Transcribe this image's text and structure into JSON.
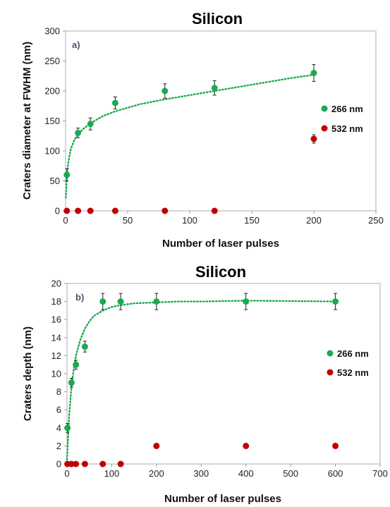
{
  "chart_data": [
    {
      "type": "scatter",
      "title": "Silicon",
      "panel_label": "a)",
      "xlabel": "Number of laser pulses",
      "ylabel": "Craters diameter at FWHM (nm)",
      "xlim": [
        0,
        250
      ],
      "ylim": [
        0,
        300
      ],
      "xticks": [
        0,
        50,
        100,
        150,
        200,
        250
      ],
      "yticks": [
        0,
        50,
        100,
        150,
        200,
        250,
        300
      ],
      "grid": false,
      "legend_position": "right",
      "series": [
        {
          "name": "266 nm",
          "color": "#1aaa50",
          "x": [
            1,
            10,
            20,
            40,
            80,
            120,
            200
          ],
          "y": [
            60,
            130,
            145,
            180,
            200,
            205,
            230
          ],
          "error": [
            10,
            8,
            10,
            10,
            12,
            12,
            14
          ],
          "trendline": "dotted",
          "trend_x": [
            0.2,
            0.5,
            1,
            2,
            4,
            7,
            10,
            15,
            20,
            30,
            40,
            50,
            60,
            80,
            100,
            120,
            140,
            160,
            180,
            200
          ],
          "trend_y": [
            22,
            35,
            56,
            78,
            102,
            118,
            128,
            138,
            146,
            158,
            166,
            172,
            178,
            186,
            193,
            200,
            207,
            214,
            221,
            227
          ]
        },
        {
          "name": "532 nm",
          "color": "#c00000",
          "x": [
            1,
            10,
            20,
            40,
            80,
            120,
            200
          ],
          "y": [
            0,
            0,
            0,
            0,
            0,
            0,
            120
          ],
          "error": [
            0,
            0,
            0,
            0,
            0,
            0,
            7
          ]
        }
      ]
    },
    {
      "type": "scatter",
      "title": "Silicon",
      "panel_label": "b)",
      "xlabel": "Number of laser pulses",
      "ylabel": "Craters depth (nm)",
      "xlim": [
        0,
        700
      ],
      "ylim": [
        0,
        20
      ],
      "xticks": [
        0,
        100,
        200,
        300,
        400,
        500,
        600,
        700
      ],
      "yticks": [
        0,
        2,
        4,
        6,
        8,
        10,
        12,
        14,
        16,
        18,
        20
      ],
      "grid": false,
      "legend_position": "right",
      "series": [
        {
          "name": "266 nm",
          "color": "#1aaa50",
          "x": [
            1,
            10,
            20,
            40,
            80,
            120,
            200,
            400,
            600
          ],
          "y": [
            4,
            9,
            11,
            13,
            18,
            18,
            18,
            18,
            18
          ],
          "error": [
            0.5,
            0.5,
            0.5,
            0.6,
            0.9,
            0.9,
            0.9,
            0.9,
            0.9
          ],
          "trendline": "dotted",
          "trend_x": [
            0,
            5,
            10,
            15,
            20,
            30,
            40,
            50,
            60,
            80,
            100,
            120,
            150,
            200,
            250,
            300,
            400,
            500,
            600
          ],
          "trend_y": [
            0.5,
            5.5,
            8.5,
            10.5,
            12,
            13.8,
            15.0,
            15.8,
            16.4,
            17.0,
            17.4,
            17.6,
            17.8,
            17.9,
            18.0,
            18.0,
            18.1,
            18.05,
            18.0
          ]
        },
        {
          "name": "532 nm",
          "color": "#c00000",
          "x": [
            1,
            10,
            20,
            40,
            80,
            120,
            200,
            400,
            600
          ],
          "y": [
            0,
            0,
            0,
            0,
            0,
            0,
            2,
            2,
            2
          ],
          "error": [
            0,
            0,
            0,
            0,
            0,
            0,
            0,
            0,
            0
          ]
        }
      ]
    }
  ]
}
